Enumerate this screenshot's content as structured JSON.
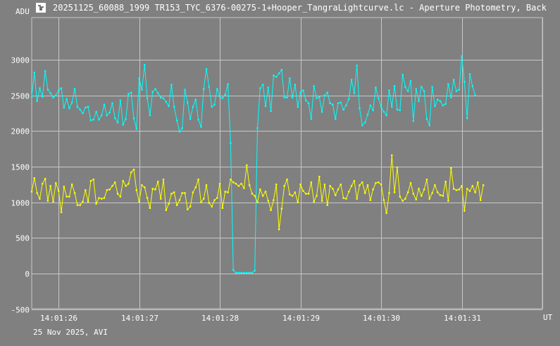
{
  "window": {
    "title": "20251125_60088_1999 TR153_TYC_6376-00275-1+Hooper_TangraLightcurve.lc - Aperture Photometry, Back"
  },
  "footer": {
    "date_label": "25 Nov 2025, AVI"
  },
  "colors": {
    "background": "#808080",
    "grid": "#c8c8c8",
    "target": "#00ffff",
    "comparison": "#ffff00"
  },
  "icon": {
    "app": "tangra-app-icon"
  },
  "chart_data": {
    "type": "line",
    "title": "",
    "xlabel": "UT",
    "ylabel": "ADU",
    "ylim": [
      -500,
      3400
    ],
    "yticks": [
      3000,
      2500,
      2000,
      1500,
      1000,
      500,
      0,
      -500
    ],
    "ytick_labels": [
      "3000",
      "2500",
      "2000",
      "1500",
      "1000",
      "500",
      "0",
      "-500"
    ],
    "xlim": [
      0,
      190
    ],
    "xticks": [
      10,
      40,
      70,
      100,
      130,
      160,
      190
    ],
    "xtick_labels": [
      "14:01:26",
      "14:01:27",
      "14:01:28",
      "14:01:29",
      "14:01:30",
      "14:01:31",
      ""
    ],
    "grid": true,
    "legend": "none",
    "series": [
      {
        "color": "#00ffff",
        "values": [
          2480,
          2820,
          2420,
          2600,
          2480,
          2840,
          2580,
          2530,
          2470,
          2500,
          2570,
          2600,
          2330,
          2450,
          2320,
          2400,
          2590,
          2340,
          2300,
          2250,
          2330,
          2340,
          2150,
          2160,
          2270,
          2160,
          2220,
          2370,
          2220,
          2260,
          2390,
          2180,
          2120,
          2430,
          2090,
          2170,
          2520,
          2540,
          2180,
          2030,
          2740,
          2580,
          2930,
          2460,
          2220,
          2550,
          2590,
          2530,
          2470,
          2460,
          2410,
          2350,
          2650,
          2340,
          2150,
          1990,
          2040,
          2580,
          2400,
          2170,
          2340,
          2440,
          2160,
          2060,
          2590,
          2870,
          2620,
          2340,
          2370,
          2590,
          2480,
          2460,
          2510,
          2660,
          1830,
          50,
          10,
          10,
          10,
          10,
          10,
          10,
          10,
          40,
          2040,
          2600,
          2650,
          2350,
          2610,
          2280,
          2780,
          2760,
          2810,
          2860,
          2470,
          2470,
          2740,
          2470,
          2650,
          2340,
          2540,
          2570,
          2430,
          2390,
          2170,
          2630,
          2460,
          2480,
          2270,
          2500,
          2540,
          2390,
          2370,
          2170,
          2390,
          2400,
          2300,
          2360,
          2450,
          2720,
          2530,
          2920,
          2320,
          2080,
          2120,
          2230,
          2360,
          2290,
          2610,
          2460,
          2340,
          2270,
          2220,
          2570,
          2340,
          2630,
          2300,
          2290,
          2790,
          2620,
          2560,
          2700,
          2140,
          2590,
          2420,
          2620,
          2560,
          2170,
          2080,
          2620,
          2350,
          2440,
          2420,
          2360,
          2380,
          2660,
          2470,
          2720,
          2560,
          2580,
          3050,
          2690,
          2180,
          2800,
          2630,
          2500
        ]
      },
      {
        "color": "#ffff00",
        "values": [
          1150,
          1340,
          1130,
          1050,
          1260,
          1330,
          1020,
          1230,
          1010,
          1270,
          1160,
          860,
          1220,
          1080,
          1080,
          1250,
          1130,
          960,
          960,
          1010,
          1170,
          1010,
          1300,
          1320,
          980,
          1060,
          1050,
          1060,
          1170,
          1180,
          1230,
          1280,
          1120,
          1080,
          1300,
          1230,
          1260,
          1420,
          1460,
          1170,
          1010,
          1240,
          1210,
          1060,
          920,
          1190,
          1180,
          1290,
          1050,
          1320,
          890,
          980,
          1120,
          1140,
          960,
          1030,
          1130,
          1130,
          900,
          940,
          1140,
          1210,
          1320,
          1000,
          1050,
          1240,
          990,
          940,
          1030,
          1060,
          1260,
          920,
          1150,
          1140,
          1320,
          1280,
          1260,
          1230,
          1260,
          1200,
          1520,
          1240,
          1120,
          1090,
          1000,
          1180,
          1090,
          1150,
          1020,
          890,
          1030,
          1250,
          620,
          910,
          1230,
          1320,
          1110,
          1090,
          1140,
          1000,
          1250,
          1160,
          1120,
          1120,
          1280,
          1010,
          1090,
          1360,
          1020,
          1250,
          960,
          1230,
          1190,
          1100,
          1180,
          1250,
          1060,
          1050,
          1150,
          1230,
          1300,
          1050,
          1240,
          1280,
          1130,
          1240,
          1030,
          1180,
          1270,
          1280,
          1250,
          1030,
          850,
          1130,
          1660,
          1140,
          1490,
          1080,
          1020,
          1050,
          1140,
          1270,
          1120,
          1040,
          1190,
          1090,
          1180,
          1320,
          1050,
          1130,
          1240,
          1140,
          1100,
          1090,
          1290,
          1020,
          1480,
          1190,
          1170,
          1180,
          1230,
          880,
          1190,
          1160,
          1230,
          1140,
          1280,
          1030,
          1240
        ]
      }
    ]
  }
}
